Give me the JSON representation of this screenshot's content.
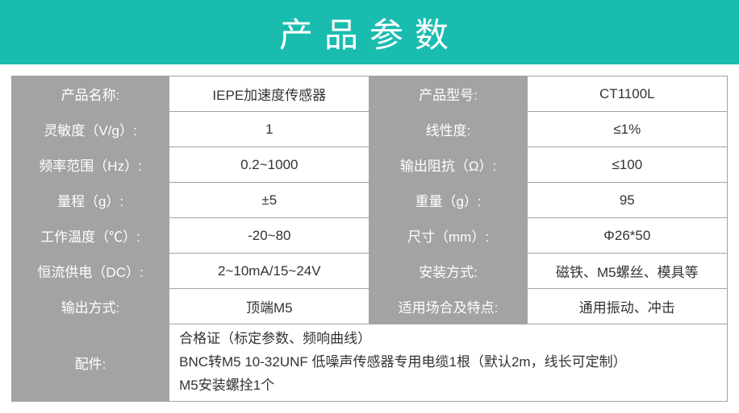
{
  "title": "产品参数",
  "colors": {
    "header_bg": "#1abcb0",
    "label_bg": "#a3a3a3",
    "border": "#a3a3a3",
    "label_text": "#ffffff",
    "value_text": "#333333"
  },
  "rows": [
    {
      "l1": "产品名称:",
      "v1": "IEPE加速度传感器",
      "l2": "产品型号:",
      "v2": "CT1100L"
    },
    {
      "l1": "灵敏度（V/g）:",
      "v1": "1",
      "l2": "线性度:",
      "v2": "≤1%"
    },
    {
      "l1": "频率范围（Hz）:",
      "v1": "0.2~1000",
      "l2": "输出阻抗（Ω）:",
      "v2": "≤100"
    },
    {
      "l1": "量程（g）:",
      "v1": "±5",
      "l2": "重量（g）:",
      "v2": "95"
    },
    {
      "l1": "工作温度（℃）:",
      "v1": "-20~80",
      "l2": "尺寸（mm）:",
      "v2": "Φ26*50"
    },
    {
      "l1": "恒流供电（DC）:",
      "v1": "2~10mA/15~24V",
      "l2": "安装方式:",
      "v2": "磁铁、M5螺丝、模具等"
    },
    {
      "l1": "输出方式:",
      "v1": "顶端M5",
      "l2": "适用场合及特点:",
      "v2": "通用振动、冲击"
    }
  ],
  "accessories": {
    "label": "配件:",
    "line1": "合格证（标定参数、频响曲线）",
    "line2": "BNC转M5 10-32UNF 低噪声传感器专用电缆1根（默认2m，线长可定制）",
    "line3": "M5安装螺拴1个"
  }
}
